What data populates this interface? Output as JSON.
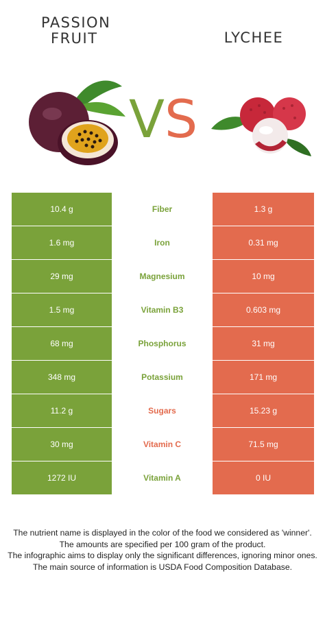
{
  "left_food": {
    "name_line1": "PASSION",
    "name_line2": "FRUIT",
    "color": "#7aa23a"
  },
  "right_food": {
    "name": "LYCHEE",
    "color": "#e36b4e"
  },
  "vs": {
    "v": "V",
    "s": "S"
  },
  "rows": [
    {
      "left": "10.4 g",
      "nutrient": "Fiber",
      "right": "1.3 g",
      "winner": "left"
    },
    {
      "left": "1.6 mg",
      "nutrient": "Iron",
      "right": "0.31 mg",
      "winner": "left"
    },
    {
      "left": "29 mg",
      "nutrient": "Magnesium",
      "right": "10 mg",
      "winner": "left"
    },
    {
      "left": "1.5 mg",
      "nutrient": "Vitamin B3",
      "right": "0.603 mg",
      "winner": "left"
    },
    {
      "left": "68 mg",
      "nutrient": "Phosphorus",
      "right": "31 mg",
      "winner": "left"
    },
    {
      "left": "348 mg",
      "nutrient": "Potassium",
      "right": "171 mg",
      "winner": "left"
    },
    {
      "left": "11.2 g",
      "nutrient": "Sugars",
      "right": "15.23 g",
      "winner": "right"
    },
    {
      "left": "30 mg",
      "nutrient": "Vitamin C",
      "right": "71.5 mg",
      "winner": "right"
    },
    {
      "left": "1272 IU",
      "nutrient": "Vitamin A",
      "right": "0 IU",
      "winner": "left"
    }
  ],
  "footnotes": [
    "The nutrient name is displayed in the color of the food we considered as 'winner'.",
    "The amounts are specified per 100 gram of the product.",
    "The infographic aims to display only the significant differences, ignoring minor ones.",
    "The main source of information is USDA Food Composition Database."
  ]
}
